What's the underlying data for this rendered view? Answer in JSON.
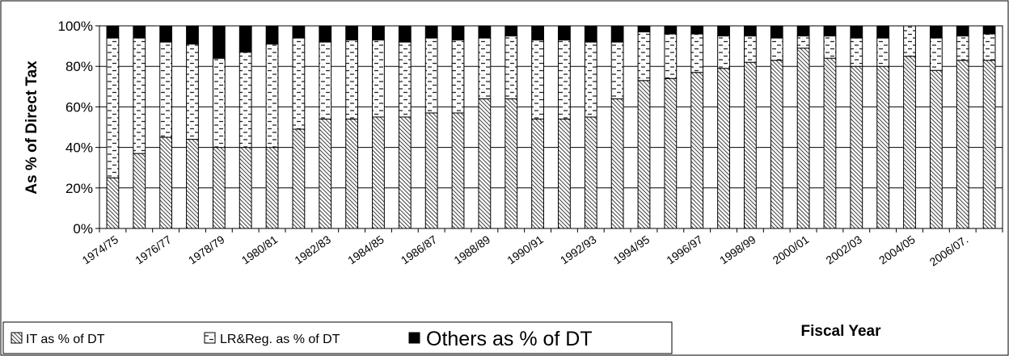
{
  "chart_data": {
    "type": "bar",
    "stacked": true,
    "ylabel": "As % of Direct Tax",
    "xlabel": "Fiscal Year",
    "ylim": [
      0,
      100
    ],
    "y_ticks": [
      "0%",
      "20%",
      "40%",
      "60%",
      "80%",
      "100%"
    ],
    "grid": "horizontal",
    "legend_position": "bottom-left",
    "categories": [
      "1974/75",
      "1975/76",
      "1976/77",
      "1977/78",
      "1978/79",
      "1979/80",
      "1980/81",
      "1981/82",
      "1982/83",
      "1983/84",
      "1984/85",
      "1985/86",
      "1986/87",
      "1987/88",
      "1988/89",
      "1989/90",
      "1990/91",
      "1991/92",
      "1992/93",
      "1993/94",
      "1994/95",
      "1995/96",
      "1996/97",
      "1997/98",
      "1998/99",
      "1999/00",
      "2000/01",
      "2001/02",
      "2002/03",
      "2003/04",
      "2004/05",
      "2005/06",
      "2006/07.",
      "2007/08"
    ],
    "visible_category_labels": [
      "1974/75",
      "1976/77",
      "1978/79",
      "1980/81",
      "1982/83",
      "1984/85",
      "1986/87",
      "1988/89",
      "1990/91",
      "1992/93",
      "1994/95",
      "1996/97",
      "1998/99",
      "2000/01",
      "2002/03",
      "2004/05",
      "2006/07."
    ],
    "series": [
      {
        "name": "IT as % of DT",
        "pattern": "diagonal-hatch",
        "values": [
          25,
          37,
          45,
          44,
          40,
          40,
          40,
          49,
          54,
          54,
          55,
          55,
          57,
          57,
          64,
          64,
          54,
          54,
          55,
          64,
          73,
          74,
          77,
          79,
          82,
          83,
          89,
          84,
          80,
          80,
          85,
          78,
          83,
          83
        ]
      },
      {
        "name": "LR&Reg. as % of DT",
        "pattern": "dashes",
        "values": [
          69,
          57,
          47,
          47,
          44,
          47,
          51,
          45,
          38,
          39,
          38,
          37,
          37,
          36,
          30,
          31,
          39,
          39,
          37,
          28,
          24,
          22,
          19,
          16,
          13,
          11,
          6,
          11,
          14,
          14,
          15,
          16,
          12,
          13
        ]
      },
      {
        "name": "Others as % of DT",
        "pattern": "solid-black",
        "values": [
          6,
          6,
          8,
          9,
          16,
          13,
          9,
          6,
          8,
          7,
          7,
          8,
          6,
          7,
          6,
          5,
          7,
          7,
          8,
          8,
          3,
          4,
          4,
          5,
          5,
          6,
          5,
          5,
          6,
          6,
          0,
          6,
          5,
          4
        ]
      }
    ]
  }
}
